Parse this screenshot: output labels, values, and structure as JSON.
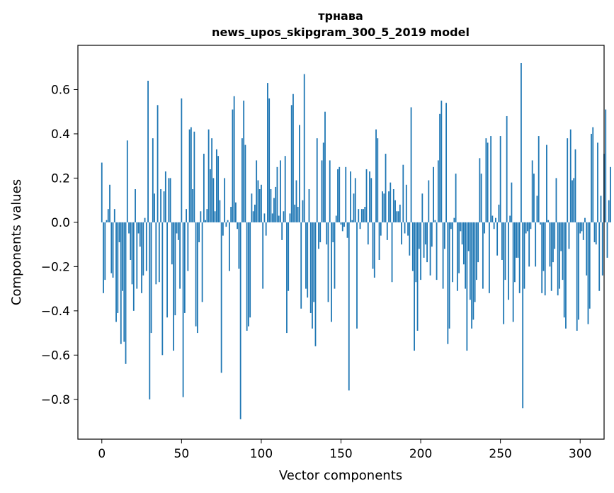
{
  "chart_data": {
    "type": "bar",
    "title": "трнава",
    "subtitle": "news_upos_skipgram_300_5_2019 model",
    "xlabel": "Vector components",
    "ylabel": "Components values",
    "xlim": [
      -15,
      315
    ],
    "ylim": [
      -0.98,
      0.8
    ],
    "xticks": [
      0,
      50,
      100,
      150,
      200,
      250,
      300
    ],
    "xtick_labels": [
      "0",
      "50",
      "100",
      "150",
      "200",
      "250",
      "300"
    ],
    "yticks": [
      -0.8,
      -0.6,
      -0.4,
      -0.2,
      0.0,
      0.2,
      0.4,
      0.6
    ],
    "ytick_labels": [
      "−0.8",
      "−0.6",
      "−0.4",
      "−0.2",
      "0.0",
      "0.2",
      "0.4",
      "0.6"
    ],
    "bar_color": "#1f77b4",
    "grid": false,
    "values": [
      0.27,
      -0.32,
      -0.26,
      0.01,
      0.06,
      0.17,
      -0.23,
      -0.25,
      0.06,
      -0.45,
      -0.41,
      -0.09,
      -0.55,
      -0.31,
      -0.54,
      -0.64,
      0.37,
      -0.05,
      -0.17,
      -0.28,
      -0.4,
      0.15,
      -0.3,
      -0.05,
      -0.11,
      -0.32,
      -0.24,
      0.02,
      -0.22,
      0.64,
      -0.8,
      -0.5,
      0.38,
      0.13,
      -0.28,
      0.53,
      -0.27,
      0.15,
      -0.6,
      0.14,
      0.23,
      -0.43,
      0.2,
      0.2,
      -0.19,
      -0.58,
      -0.42,
      -0.05,
      -0.08,
      -0.3,
      0.56,
      -0.79,
      -0.41,
      0.06,
      -0.22,
      0.42,
      0.43,
      0.15,
      0.41,
      -0.47,
      -0.5,
      -0.09,
      0.05,
      -0.36,
      0.31,
      0.01,
      0.06,
      0.42,
      0.24,
      0.38,
      0.2,
      0.05,
      0.33,
      0.3,
      0.1,
      -0.68,
      -0.06,
      0.2,
      -0.02,
      0.01,
      -0.22,
      0.07,
      0.51,
      0.57,
      0.09,
      -0.03,
      -0.21,
      -0.89,
      0.38,
      0.55,
      0.35,
      -0.49,
      -0.47,
      -0.43,
      0.13,
      0.05,
      0.08,
      0.28,
      0.19,
      0.15,
      0.17,
      -0.3,
      0.04,
      -0.06,
      0.63,
      0.56,
      0.15,
      0.04,
      0.11,
      0.16,
      0.25,
      0.03,
      0.28,
      -0.08,
      0.05,
      0.3,
      -0.5,
      -0.31,
      0.04,
      0.53,
      0.58,
      0.08,
      0.19,
      0.07,
      0.44,
      -0.39,
      0.1,
      0.67,
      -0.3,
      -0.34,
      0.15,
      -0.41,
      -0.48,
      -0.36,
      -0.56,
      0.38,
      -0.12,
      -0.09,
      0.28,
      0.36,
      0.5,
      -0.1,
      -0.36,
      0.28,
      -0.45,
      -0.09,
      -0.3,
      0.03,
      0.24,
      0.25,
      -0.01,
      -0.04,
      -0.02,
      0.25,
      -0.07,
      -0.76,
      0.23,
      0.01,
      0.13,
      0.2,
      -0.48,
      0.06,
      -0.03,
      0.06,
      0.06,
      0.07,
      0.24,
      -0.1,
      0.23,
      0.2,
      -0.21,
      -0.25,
      0.42,
      0.38,
      -0.17,
      -0.06,
      0.14,
      0.13,
      0.31,
      -0.08,
      0.14,
      0.18,
      -0.27,
      0.15,
      0.1,
      0.05,
      0.05,
      0.08,
      -0.1,
      0.26,
      -0.05,
      0.17,
      -0.06,
      -0.15,
      0.52,
      -0.22,
      -0.58,
      -0.27,
      -0.49,
      -0.12,
      -0.26,
      0.13,
      -0.16,
      -0.1,
      -0.18,
      0.19,
      -0.24,
      -0.11,
      0.25,
      0.01,
      -0.26,
      0.28,
      0.49,
      0.55,
      -0.3,
      -0.12,
      0.54,
      -0.55,
      -0.48,
      -0.03,
      -0.27,
      0.02,
      0.22,
      -0.31,
      -0.23,
      -0.04,
      -0.1,
      -0.19,
      -0.3,
      -0.58,
      -0.13,
      -0.35,
      -0.48,
      -0.44,
      -0.36,
      -0.26,
      -0.18,
      0.29,
      0.22,
      -0.3,
      -0.05,
      0.38,
      0.36,
      -0.32,
      0.39,
      0.03,
      -0.03,
      0.02,
      -0.15,
      0.08,
      0.39,
      -0.17,
      -0.46,
      -0.26,
      0.48,
      -0.35,
      0.03,
      0.18,
      -0.45,
      -0.27,
      -0.16,
      -0.16,
      -0.32,
      0.72,
      -0.84,
      -0.3,
      -0.05,
      -0.04,
      -0.2,
      -0.03,
      0.28,
      0.22,
      -0.2,
      0.12,
      0.39,
      -0.01,
      -0.32,
      -0.22,
      -0.33,
      0.35,
      0.01,
      -0.2,
      -0.31,
      -0.18,
      -0.12,
      0.2,
      -0.33,
      -0.3,
      -0.13,
      -0.26,
      -0.43,
      -0.48,
      0.38,
      -0.12,
      0.42,
      0.19,
      0.2,
      0.33,
      -0.49,
      -0.44,
      -0.05,
      -0.04,
      -0.08,
      0.02,
      -0.24,
      -0.46,
      -0.39,
      0.4,
      0.43,
      -0.09,
      -0.1,
      0.36,
      -0.31,
      0.12,
      -0.24,
      0.31,
      0.51,
      -0.16,
      0.1,
      0.25
    ]
  }
}
